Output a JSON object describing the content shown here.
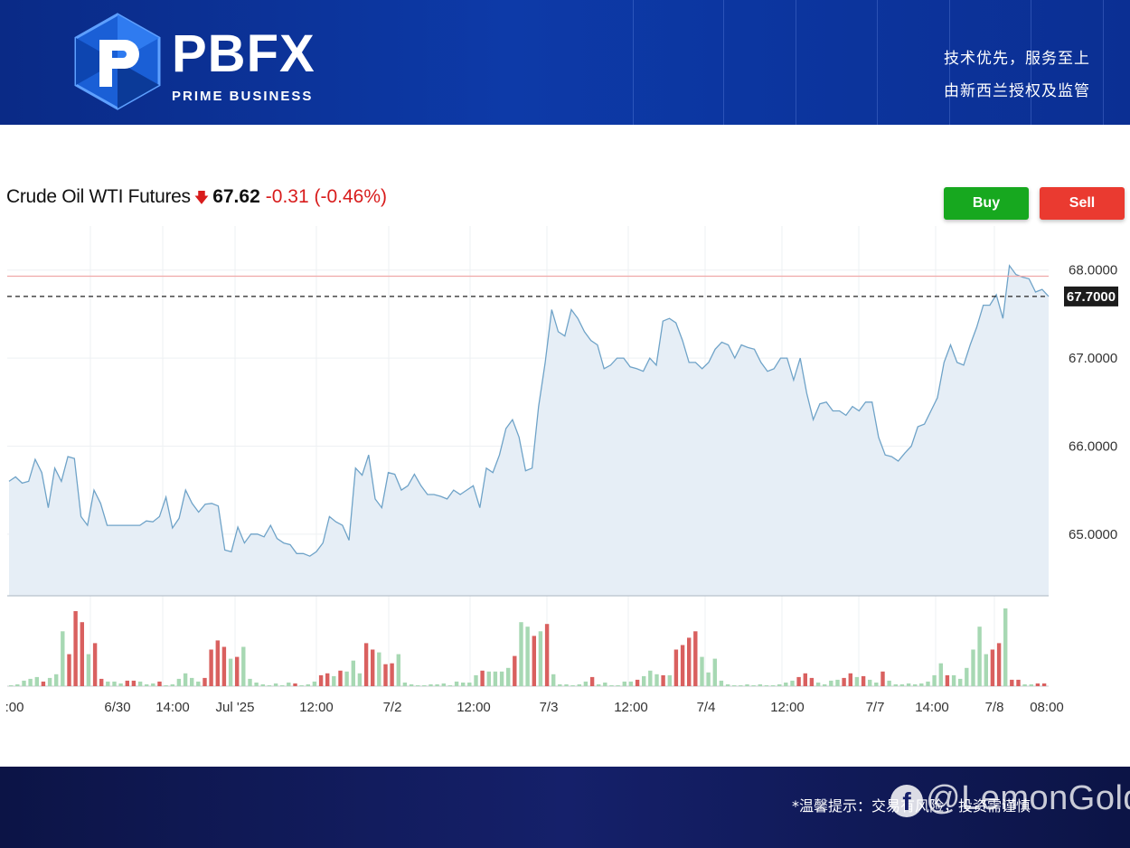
{
  "header": {
    "brand_name": "PBFX",
    "brand_sub": "PRIME BUSINESS",
    "slogan_line1": "技术优先，服务至上",
    "slogan_line2": "由新西兰授权及监管"
  },
  "quote": {
    "name": "Crude Oil WTI Futures",
    "price": "67.62",
    "change": "-0.31 (-0.46%)",
    "direction_icon": "arrow-down-icon"
  },
  "actions": {
    "buy_label": "Buy",
    "sell_label": "Sell"
  },
  "colors": {
    "buy": "#17a81f",
    "sell": "#ea3a30",
    "line": "#6fa3c8",
    "area": "#e6eef6",
    "vol_up": "#a7d8b3",
    "vol_down": "#d9605f",
    "negative": "#d81c1c"
  },
  "chart_data": {
    "type": "area",
    "title": "Crude Oil WTI Futures",
    "ylim": [
      64.3,
      68.5
    ],
    "y_ticks": [
      "68.0000",
      "67.0000",
      "66.0000",
      "65.0000"
    ],
    "current_price_label": "67.7000",
    "reference_line": 67.93,
    "x_tick_labels": [
      ":00",
      "6/30",
      "14:00",
      "Jul '25",
      "12:00",
      "7/2",
      "12:00",
      "7/3",
      "12:00",
      "7/4",
      "12:00",
      "7/7",
      "14:00",
      "7/8",
      "08:00"
    ],
    "series": [
      {
        "values": [
          65.6,
          65.65,
          65.58,
          65.6,
          65.85,
          65.7,
          65.3,
          65.75,
          65.6,
          65.88,
          65.86,
          65.2,
          65.1,
          65.5,
          65.35,
          65.1,
          65.1,
          65.1,
          65.1,
          65.1,
          65.1,
          65.15,
          65.14,
          65.2,
          65.42,
          65.07,
          65.18,
          65.5,
          65.35,
          65.25,
          65.34,
          65.35,
          65.32,
          64.82,
          64.8,
          65.08,
          64.9,
          65.0,
          65.0,
          64.97,
          65.1,
          64.95,
          64.9,
          64.88,
          64.78,
          64.78,
          64.75,
          64.8,
          64.9,
          65.2,
          65.14,
          65.1,
          64.93,
          65.75,
          65.67,
          65.9,
          65.4,
          65.3,
          65.7,
          65.68,
          65.5,
          65.55,
          65.68,
          65.55,
          65.45,
          65.45,
          65.43,
          65.4,
          65.5,
          65.45,
          65.5,
          65.55,
          65.3,
          65.75,
          65.7,
          65.9,
          66.2,
          66.3,
          66.1,
          65.72,
          65.75,
          66.45,
          66.95,
          67.55,
          67.3,
          67.25,
          67.55,
          67.45,
          67.3,
          67.2,
          67.15,
          66.88,
          66.92,
          67.0,
          67.0,
          66.9,
          66.88,
          66.85,
          67.0,
          66.92,
          67.42,
          67.45,
          67.4,
          67.2,
          66.95,
          66.95,
          66.88,
          66.95,
          67.1,
          67.18,
          67.15,
          67.0,
          67.15,
          67.12,
          67.1,
          66.95,
          66.85,
          66.88,
          67.0,
          67.0,
          66.75,
          67.0,
          66.6,
          66.3,
          66.48,
          66.5,
          66.4,
          66.4,
          66.35,
          66.45,
          66.4,
          66.5,
          66.5,
          66.1,
          65.9,
          65.88,
          65.83,
          65.92,
          66.0,
          66.22,
          66.25,
          66.4,
          66.55,
          66.95,
          67.15,
          66.95,
          66.92,
          67.15,
          67.35,
          67.6,
          67.6,
          67.72,
          67.45,
          68.05,
          67.95,
          67.92,
          67.9,
          67.75,
          67.78,
          67.7
        ]
      }
    ],
    "volume": [
      {
        "v": 1,
        "d": "up"
      },
      {
        "v": 2,
        "d": "up"
      },
      {
        "v": 6,
        "d": "up"
      },
      {
        "v": 8,
        "d": "up"
      },
      {
        "v": 10,
        "d": "up"
      },
      {
        "v": 5,
        "d": "down"
      },
      {
        "v": 9,
        "d": "up"
      },
      {
        "v": 13,
        "d": "up"
      },
      {
        "v": 60,
        "d": "up"
      },
      {
        "v": 35,
        "d": "down"
      },
      {
        "v": 82,
        "d": "down"
      },
      {
        "v": 70,
        "d": "down"
      },
      {
        "v": 35,
        "d": "up"
      },
      {
        "v": 47,
        "d": "down"
      },
      {
        "v": 8,
        "d": "down"
      },
      {
        "v": 5,
        "d": "up"
      },
      {
        "v": 5,
        "d": "up"
      },
      {
        "v": 3,
        "d": "up"
      },
      {
        "v": 6,
        "d": "down"
      },
      {
        "v": 6,
        "d": "down"
      },
      {
        "v": 5,
        "d": "up"
      },
      {
        "v": 2,
        "d": "up"
      },
      {
        "v": 3,
        "d": "up"
      },
      {
        "v": 5,
        "d": "down"
      },
      {
        "v": 1,
        "d": "up"
      },
      {
        "v": 2,
        "d": "up"
      },
      {
        "v": 8,
        "d": "up"
      },
      {
        "v": 14,
        "d": "up"
      },
      {
        "v": 9,
        "d": "up"
      },
      {
        "v": 5,
        "d": "up"
      },
      {
        "v": 9,
        "d": "down"
      },
      {
        "v": 40,
        "d": "down"
      },
      {
        "v": 50,
        "d": "down"
      },
      {
        "v": 43,
        "d": "down"
      },
      {
        "v": 30,
        "d": "up"
      },
      {
        "v": 32,
        "d": "down"
      },
      {
        "v": 43,
        "d": "up"
      },
      {
        "v": 8,
        "d": "up"
      },
      {
        "v": 4,
        "d": "up"
      },
      {
        "v": 2,
        "d": "up"
      },
      {
        "v": 1,
        "d": "up"
      },
      {
        "v": 3,
        "d": "up"
      },
      {
        "v": 1,
        "d": "up"
      },
      {
        "v": 4,
        "d": "up"
      },
      {
        "v": 3,
        "d": "down"
      },
      {
        "v": 1,
        "d": "up"
      },
      {
        "v": 2,
        "d": "up"
      },
      {
        "v": 5,
        "d": "up"
      },
      {
        "v": 12,
        "d": "down"
      },
      {
        "v": 14,
        "d": "down"
      },
      {
        "v": 11,
        "d": "up"
      },
      {
        "v": 17,
        "d": "down"
      },
      {
        "v": 16,
        "d": "up"
      },
      {
        "v": 28,
        "d": "up"
      },
      {
        "v": 14,
        "d": "up"
      },
      {
        "v": 47,
        "d": "down"
      },
      {
        "v": 40,
        "d": "down"
      },
      {
        "v": 37,
        "d": "up"
      },
      {
        "v": 24,
        "d": "down"
      },
      {
        "v": 25,
        "d": "down"
      },
      {
        "v": 35,
        "d": "up"
      },
      {
        "v": 4,
        "d": "up"
      },
      {
        "v": 2,
        "d": "up"
      },
      {
        "v": 1,
        "d": "up"
      },
      {
        "v": 1,
        "d": "up"
      },
      {
        "v": 2,
        "d": "up"
      },
      {
        "v": 2,
        "d": "up"
      },
      {
        "v": 3,
        "d": "up"
      },
      {
        "v": 1,
        "d": "up"
      },
      {
        "v": 5,
        "d": "up"
      },
      {
        "v": 4,
        "d": "up"
      },
      {
        "v": 4,
        "d": "up"
      },
      {
        "v": 12,
        "d": "up"
      },
      {
        "v": 17,
        "d": "down"
      },
      {
        "v": 16,
        "d": "up"
      },
      {
        "v": 16,
        "d": "up"
      },
      {
        "v": 16,
        "d": "up"
      },
      {
        "v": 20,
        "d": "up"
      },
      {
        "v": 33,
        "d": "down"
      },
      {
        "v": 70,
        "d": "up"
      },
      {
        "v": 65,
        "d": "up"
      },
      {
        "v": 55,
        "d": "down"
      },
      {
        "v": 60,
        "d": "up"
      },
      {
        "v": 68,
        "d": "down"
      },
      {
        "v": 13,
        "d": "up"
      },
      {
        "v": 2,
        "d": "up"
      },
      {
        "v": 2,
        "d": "up"
      },
      {
        "v": 1,
        "d": "up"
      },
      {
        "v": 2,
        "d": "up"
      },
      {
        "v": 5,
        "d": "up"
      },
      {
        "v": 10,
        "d": "down"
      },
      {
        "v": 2,
        "d": "up"
      },
      {
        "v": 4,
        "d": "up"
      },
      {
        "v": 1,
        "d": "up"
      },
      {
        "v": 1,
        "d": "up"
      },
      {
        "v": 5,
        "d": "up"
      },
      {
        "v": 5,
        "d": "up"
      },
      {
        "v": 7,
        "d": "down"
      },
      {
        "v": 11,
        "d": "up"
      },
      {
        "v": 17,
        "d": "up"
      },
      {
        "v": 13,
        "d": "up"
      },
      {
        "v": 12,
        "d": "down"
      },
      {
        "v": 12,
        "d": "up"
      },
      {
        "v": 40,
        "d": "down"
      },
      {
        "v": 45,
        "d": "down"
      },
      {
        "v": 53,
        "d": "down"
      },
      {
        "v": 60,
        "d": "down"
      },
      {
        "v": 32,
        "d": "up"
      },
      {
        "v": 15,
        "d": "up"
      },
      {
        "v": 30,
        "d": "up"
      },
      {
        "v": 6,
        "d": "up"
      },
      {
        "v": 2,
        "d": "up"
      },
      {
        "v": 1,
        "d": "up"
      },
      {
        "v": 1,
        "d": "up"
      },
      {
        "v": 2,
        "d": "up"
      },
      {
        "v": 1,
        "d": "up"
      },
      {
        "v": 2,
        "d": "up"
      },
      {
        "v": 1,
        "d": "up"
      },
      {
        "v": 1,
        "d": "up"
      },
      {
        "v": 2,
        "d": "up"
      },
      {
        "v": 4,
        "d": "up"
      },
      {
        "v": 6,
        "d": "up"
      },
      {
        "v": 10,
        "d": "down"
      },
      {
        "v": 14,
        "d": "down"
      },
      {
        "v": 9,
        "d": "down"
      },
      {
        "v": 4,
        "d": "up"
      },
      {
        "v": 2,
        "d": "up"
      },
      {
        "v": 6,
        "d": "up"
      },
      {
        "v": 7,
        "d": "up"
      },
      {
        "v": 9,
        "d": "down"
      },
      {
        "v": 14,
        "d": "down"
      },
      {
        "v": 10,
        "d": "up"
      },
      {
        "v": 11,
        "d": "down"
      },
      {
        "v": 7,
        "d": "up"
      },
      {
        "v": 4,
        "d": "up"
      },
      {
        "v": 16,
        "d": "down"
      },
      {
        "v": 6,
        "d": "up"
      },
      {
        "v": 2,
        "d": "up"
      },
      {
        "v": 2,
        "d": "up"
      },
      {
        "v": 3,
        "d": "up"
      },
      {
        "v": 2,
        "d": "up"
      },
      {
        "v": 3,
        "d": "up"
      },
      {
        "v": 5,
        "d": "up"
      },
      {
        "v": 12,
        "d": "up"
      },
      {
        "v": 25,
        "d": "up"
      },
      {
        "v": 12,
        "d": "down"
      },
      {
        "v": 12,
        "d": "up"
      },
      {
        "v": 8,
        "d": "up"
      },
      {
        "v": 20,
        "d": "up"
      },
      {
        "v": 40,
        "d": "up"
      },
      {
        "v": 65,
        "d": "up"
      },
      {
        "v": 35,
        "d": "up"
      },
      {
        "v": 40,
        "d": "down"
      },
      {
        "v": 47,
        "d": "down"
      },
      {
        "v": 85,
        "d": "up"
      },
      {
        "v": 7,
        "d": "down"
      },
      {
        "v": 7,
        "d": "down"
      },
      {
        "v": 2,
        "d": "up"
      },
      {
        "v": 2,
        "d": "up"
      },
      {
        "v": 3,
        "d": "down"
      },
      {
        "v": 3,
        "d": "down"
      }
    ]
  },
  "footer": {
    "note": "*温馨提示：交易有风险，投资需谨慎",
    "watermark": "@LemonGold"
  }
}
